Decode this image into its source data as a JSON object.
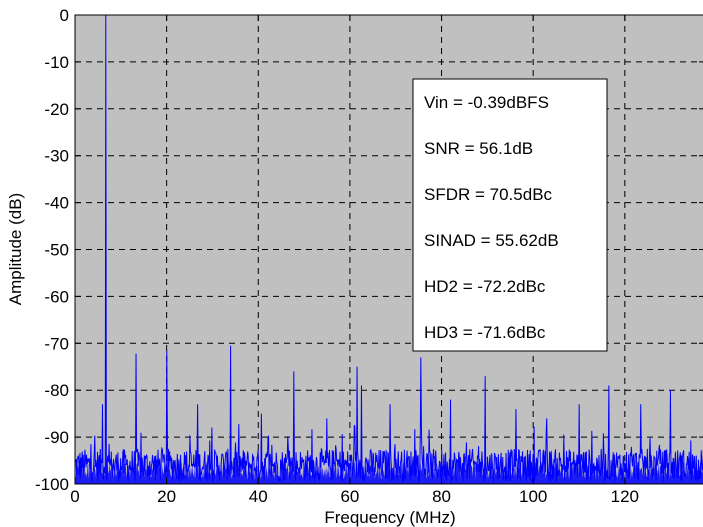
{
  "chart_data": {
    "type": "line",
    "title": "",
    "xlabel": "Frequency (MHz)",
    "ylabel": "Amplitude (dB)",
    "xlim": [
      0,
      137.5
    ],
    "ylim": [
      -100,
      0
    ],
    "xticks": [
      0,
      20,
      40,
      60,
      80,
      100,
      120
    ],
    "yticks": [
      0,
      -10,
      -20,
      -30,
      -40,
      -50,
      -60,
      -70,
      -80,
      -90,
      -100
    ],
    "grid": true,
    "legend": "none",
    "background_color": "#c0c0c0",
    "series": [
      {
        "color": "#0000ff",
        "noise_floor_db": -96,
        "peaks": [
          {
            "x": 6.7,
            "y": 0
          },
          {
            "x": 6.0,
            "y": -83
          },
          {
            "x": 13.3,
            "y": -72.2
          },
          {
            "x": 20.0,
            "y": -71.6
          },
          {
            "x": 26.7,
            "y": -83
          },
          {
            "x": 34.0,
            "y": -70.5
          },
          {
            "x": 40.7,
            "y": -85
          },
          {
            "x": 47.8,
            "y": -76
          },
          {
            "x": 55.0,
            "y": -86
          },
          {
            "x": 61.5,
            "y": -75
          },
          {
            "x": 62.5,
            "y": -79
          },
          {
            "x": 68.8,
            "y": -83
          },
          {
            "x": 75.5,
            "y": -73
          },
          {
            "x": 82.0,
            "y": -82
          },
          {
            "x": 89.5,
            "y": -77
          },
          {
            "x": 96.2,
            "y": -84
          },
          {
            "x": 103.0,
            "y": -86
          },
          {
            "x": 110.0,
            "y": -83
          },
          {
            "x": 116.5,
            "y": -79
          },
          {
            "x": 123.5,
            "y": -83
          },
          {
            "x": 130.0,
            "y": -80
          }
        ]
      }
    ],
    "annotations": [
      "Vin = -0.39dBFS",
      "SNR = 56.1dB",
      "SFDR = 70.5dBc",
      "SINAD = 55.62dB",
      "HD2 = -72.2dBc",
      "HD3 = -71.6dBc"
    ]
  }
}
